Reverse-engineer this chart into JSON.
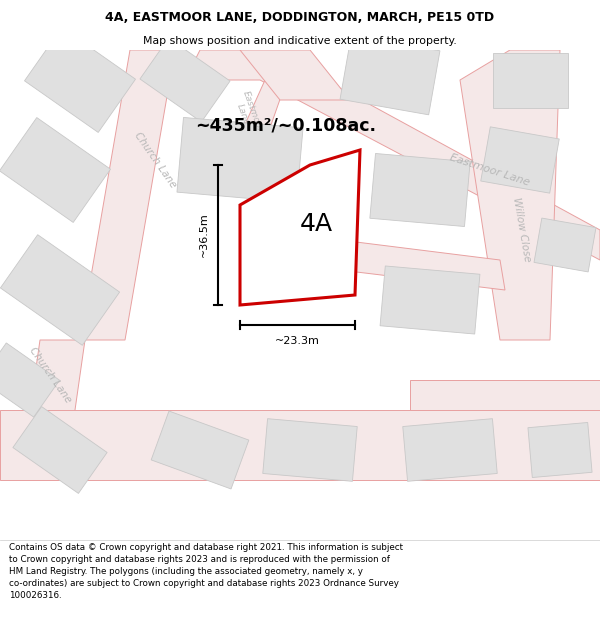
{
  "title_line1": "4A, EASTMOOR LANE, DODDINGTON, MARCH, PE15 0TD",
  "title_line2": "Map shows position and indicative extent of the property.",
  "area_text": "~435m²/~0.108ac.",
  "label_4A": "4A",
  "dim_vertical": "~36.5m",
  "dim_horizontal": "~23.3m",
  "footer_text": "Contains OS data © Crown copyright and database right 2021. This information is subject to Crown copyright and database rights 2023 and is reproduced with the permission of HM Land Registry. The polygons (including the associated geometry, namely x, y co-ordinates) are subject to Crown copyright and database rights 2023 Ordnance Survey 100026316.",
  "bg_color": "#ffffff",
  "map_bg": "#ffffff",
  "road_line_color": "#e8a0a0",
  "road_fill_color": "#f5e8e8",
  "road_label_color": "#b8b8b8",
  "building_fill": "#e0e0e0",
  "building_edge": "#c8c8c8",
  "plot_color": "#cc0000",
  "plot_fill": "#ffffff",
  "dim_color": "#000000",
  "title_color": "#000000",
  "area_color": "#000000",
  "footer_color": "#000000"
}
